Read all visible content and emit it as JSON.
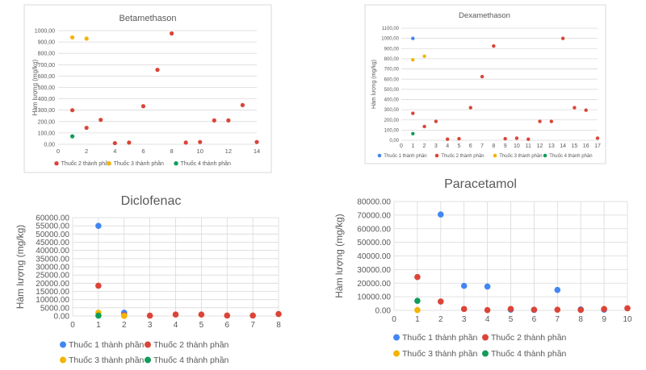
{
  "colors": {
    "s1": "#4285f4",
    "s2": "#db4437",
    "s3": "#f4b400",
    "s4": "#0f9d58",
    "grid": "#d9d9d9",
    "text": "#595959"
  },
  "chart_data": [
    {
      "id": "betamethason",
      "type": "scatter",
      "title": "Betamethason",
      "xlabel": "",
      "ylabel": "Hàm lượng (mg/kg)",
      "xlim": [
        0,
        14
      ],
      "xticks": [
        0,
        2,
        4,
        6,
        8,
        10,
        12,
        14
      ],
      "xtick_labels": [
        "0",
        "2",
        "4",
        "6",
        "8",
        "10",
        "12",
        "14"
      ],
      "ylim": [
        0,
        1000
      ],
      "yticks": [
        0,
        100,
        200,
        300,
        400,
        500,
        600,
        700,
        800,
        900,
        1000
      ],
      "ytick_labels": [
        "0,00",
        "100,00",
        "200,00",
        "300,00",
        "400,00",
        "500,00",
        "600,00",
        "700,00",
        "800,00",
        "900,00",
        "1000,00"
      ],
      "grid": "horizontal",
      "legend_position": "bottom",
      "legend": [
        "Thuốc 2 thành phần",
        "Thuốc 3 thành phần",
        "Thuốc 4 thành phần"
      ],
      "legend_colors": [
        "s2",
        "s3",
        "s4"
      ],
      "series": [
        {
          "name": "Thuốc 2 thành phần",
          "color": "s2",
          "points": [
            [
              1,
              300
            ],
            [
              2,
              145
            ],
            [
              3,
              215
            ],
            [
              4,
              10
            ],
            [
              5,
              15
            ],
            [
              6,
              335
            ],
            [
              7,
              655
            ],
            [
              8,
              975
            ],
            [
              9,
              15
            ],
            [
              10,
              20
            ],
            [
              11,
              210
            ],
            [
              12,
              210
            ],
            [
              13,
              345
            ],
            [
              14,
              20
            ]
          ]
        },
        {
          "name": "Thuốc 3 thành phần",
          "color": "s3",
          "points": [
            [
              1,
              940
            ],
            [
              2,
              930
            ]
          ]
        },
        {
          "name": "Thuốc 4 thành phần",
          "color": "s4",
          "points": [
            [
              1,
              70
            ]
          ]
        }
      ]
    },
    {
      "id": "dexamethason",
      "type": "scatter",
      "title": "Dexamethason",
      "xlabel": "",
      "ylabel": "Hàm lượng (mg/kg)",
      "xlim": [
        0,
        17
      ],
      "xticks": [
        0,
        1,
        2,
        3,
        4,
        5,
        6,
        7,
        8,
        9,
        10,
        11,
        12,
        13,
        14,
        15,
        16,
        17
      ],
      "xtick_labels": [
        "0",
        "1",
        "2",
        "3",
        "4",
        "5",
        "6",
        "7",
        "8",
        "9",
        "10",
        "11",
        "12",
        "13",
        "14",
        "15",
        "16",
        "17"
      ],
      "ylim": [
        0,
        1100
      ],
      "yticks": [
        0,
        100,
        200,
        300,
        400,
        500,
        600,
        700,
        800,
        900,
        1000,
        1100
      ],
      "ytick_labels": [
        "0,00",
        "100,00",
        "200,00",
        "300,00",
        "400,00",
        "500,00",
        "600,00",
        "700,00",
        "800,00",
        "900,00",
        "1000,00",
        "1100,00"
      ],
      "grid": "horizontal",
      "legend_position": "bottom",
      "legend": [
        "Thuốc 1 thành phần",
        "Thuốc 2 thành phần",
        "Thuốc 3 thành phần",
        "Thuốc 4 thành phần"
      ],
      "legend_colors": [
        "s1",
        "s2",
        "s3",
        "s4"
      ],
      "series": [
        {
          "name": "Thuốc 1 thành phần",
          "color": "s1",
          "points": [
            [
              1,
              1000
            ]
          ]
        },
        {
          "name": "Thuốc 2 thành phần",
          "color": "s2",
          "points": [
            [
              1,
              265
            ],
            [
              2,
              135
            ],
            [
              3,
              185
            ],
            [
              4,
              10
            ],
            [
              5,
              15
            ],
            [
              6,
              320
            ],
            [
              7,
              625
            ],
            [
              8,
              925
            ],
            [
              9,
              15
            ],
            [
              10,
              20
            ],
            [
              11,
              10
            ],
            [
              12,
              185
            ],
            [
              13,
              185
            ],
            [
              14,
              1000
            ],
            [
              15,
              320
            ],
            [
              16,
              295
            ],
            [
              17,
              20
            ]
          ]
        },
        {
          "name": "Thuốc 3 thành phần",
          "color": "s3",
          "points": [
            [
              1,
              790
            ],
            [
              2,
              825
            ]
          ]
        },
        {
          "name": "Thuốc 4 thành phần",
          "color": "s4",
          "points": [
            [
              1,
              65
            ]
          ]
        }
      ]
    },
    {
      "id": "diclofenac",
      "type": "scatter",
      "title": "Diclofenac",
      "xlabel": "",
      "ylabel": "Hàm lượng (mg/kg)",
      "xlim": [
        0,
        8
      ],
      "xticks": [
        0,
        1,
        2,
        3,
        4,
        5,
        6,
        7,
        8
      ],
      "xtick_labels": [
        "0",
        "1",
        "2",
        "3",
        "4",
        "5",
        "6",
        "7",
        "8"
      ],
      "ylim": [
        0,
        60000
      ],
      "yticks": [
        0,
        5000,
        10000,
        15000,
        20000,
        25000,
        30000,
        35000,
        40000,
        45000,
        50000,
        55000,
        60000
      ],
      "ytick_labels": [
        "0.00",
        "5000.00",
        "10000.00",
        "15000.00",
        "20000.00",
        "25000.00",
        "30000.00",
        "35000.00",
        "40000.00",
        "45000.00",
        "50000.00",
        "55000.00",
        "60000.00"
      ],
      "grid": "both",
      "legend_position": "bottom",
      "legend": [
        "Thuốc 1 thành phần",
        "Thuốc 2 thành phần",
        "Thuốc 3 thành phần",
        "Thuốc 4 thành phần"
      ],
      "legend_colors": [
        "s1",
        "s2",
        "s3",
        "s4"
      ],
      "series": [
        {
          "name": "Thuốc 1 thành phần",
          "color": "s1",
          "points": [
            [
              1,
              55000
            ],
            [
              2,
              2000
            ]
          ]
        },
        {
          "name": "Thuốc 2 thành phần",
          "color": "s2",
          "points": [
            [
              1,
              18500
            ],
            [
              2,
              500
            ],
            [
              3,
              200
            ],
            [
              4,
              900
            ],
            [
              5,
              900
            ],
            [
              6,
              300
            ],
            [
              7,
              300
            ],
            [
              8,
              1200
            ]
          ]
        },
        {
          "name": "Thuốc 3 thành phần",
          "color": "s3",
          "points": [
            [
              1,
              2000
            ],
            [
              2,
              100
            ]
          ]
        },
        {
          "name": "Thuốc 4 thành phần",
          "color": "s4",
          "points": [
            [
              1,
              200
            ]
          ]
        }
      ]
    },
    {
      "id": "paracetamol",
      "type": "scatter",
      "title": "Paracetamol",
      "xlabel": "",
      "ylabel": "Hàm lượng (mg/kg)",
      "xlim": [
        0,
        10
      ],
      "xticks": [
        0,
        1,
        2,
        3,
        4,
        5,
        6,
        7,
        8,
        9,
        10
      ],
      "xtick_labels": [
        "0",
        "1",
        "2",
        "3",
        "4",
        "5",
        "6",
        "7",
        "8",
        "9",
        "10"
      ],
      "ylim": [
        0,
        80000
      ],
      "yticks": [
        0,
        10000,
        20000,
        30000,
        40000,
        50000,
        60000,
        70000,
        80000
      ],
      "ytick_labels": [
        "0.00",
        "10000.00",
        "20000.00",
        "30000.00",
        "40000.00",
        "50000.00",
        "60000.00",
        "70000.00",
        "80000.00"
      ],
      "grid": "both",
      "legend_position": "bottom",
      "legend": [
        "Thuốc 1 thành phần",
        "Thuốc 2 thành phần",
        "Thuốc 3 thành phần",
        "Thuốc 4 thành phần"
      ],
      "legend_colors": [
        "s1",
        "s2",
        "s3",
        "s4"
      ],
      "series": [
        {
          "name": "Thuốc 1 thành phần",
          "color": "s1",
          "points": [
            [
              2,
              70500
            ],
            [
              3,
              18000
            ],
            [
              4,
              17500
            ],
            [
              5,
              500
            ],
            [
              6,
              300
            ],
            [
              7,
              15000
            ],
            [
              8,
              700
            ],
            [
              9,
              500
            ]
          ]
        },
        {
          "name": "Thuốc 2 thành phần",
          "color": "s2",
          "points": [
            [
              1,
              24500
            ],
            [
              2,
              6500
            ],
            [
              3,
              1000
            ],
            [
              4,
              200
            ],
            [
              5,
              1000
            ],
            [
              6,
              500
            ],
            [
              7,
              500
            ],
            [
              8,
              300
            ],
            [
              9,
              1000
            ],
            [
              10,
              1500
            ]
          ]
        },
        {
          "name": "Thuốc 3 thành phần",
          "color": "s3",
          "points": [
            [
              1,
              200
            ]
          ]
        },
        {
          "name": "Thuốc 4 thành phần",
          "color": "s4",
          "points": [
            [
              1,
              7000
            ]
          ]
        }
      ]
    }
  ]
}
